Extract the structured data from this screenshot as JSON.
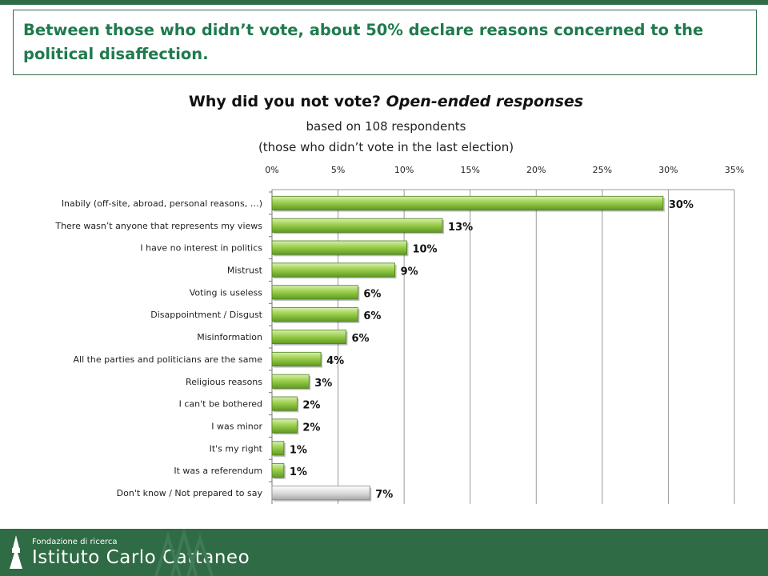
{
  "headline": "Between those who didn’t vote, about 50% declare reasons concerned to the political disaffection.",
  "title_main": "Why did you not vote?",
  "title_italic": "Open-ended responses",
  "subtitle_line1": "based on 108 respondents",
  "subtitle_line2": "(those who didn’t vote in the last election)",
  "footer": {
    "org_small": "Fondazione di ricerca",
    "org_big": "Istituto Carlo Cattaneo"
  },
  "colors": {
    "brand_green": "#2f6b45",
    "headline_green": "#1f7a4d",
    "bar_green": "#8cc63f",
    "bar_grey": "#d9d9d9"
  },
  "chart_data": {
    "type": "bar",
    "orientation": "horizontal",
    "title": "Why did you not vote? Open-ended responses",
    "subtitle": "based on 108 respondents (those who didn’t vote in the last election)",
    "xlim": [
      0,
      35
    ],
    "xticks": [
      "0%",
      "5%",
      "10%",
      "15%",
      "20%",
      "25%",
      "30%",
      "35%"
    ],
    "grid": true,
    "axis_position": "top",
    "categories": [
      "Inabily (off-site, abroad, personal reasons, …)",
      "There wasn’t anyone that represents my views",
      "I have no interest in politics",
      "Mistrust",
      "Voting is useless",
      "Disappointment / Disgust",
      "Misinformation",
      "All the parties and politicians are the same",
      "Religious reasons",
      "I can't be bothered",
      "I was minor",
      "It's my right",
      "It was a referendum",
      "Don't know / Not prepared to say"
    ],
    "values": [
      29.6,
      12.9,
      10.2,
      9.3,
      6.5,
      6.5,
      5.6,
      3.7,
      2.8,
      1.9,
      1.9,
      0.9,
      0.9,
      7.4
    ],
    "labels": [
      "30%",
      "13%",
      "10%",
      "9%",
      "6%",
      "6%",
      "6%",
      "4%",
      "3%",
      "2%",
      "2%",
      "1%",
      "1%",
      "7%"
    ],
    "bar_colors": [
      "green",
      "green",
      "green",
      "green",
      "green",
      "green",
      "green",
      "green",
      "green",
      "green",
      "green",
      "green",
      "green",
      "grey"
    ]
  }
}
